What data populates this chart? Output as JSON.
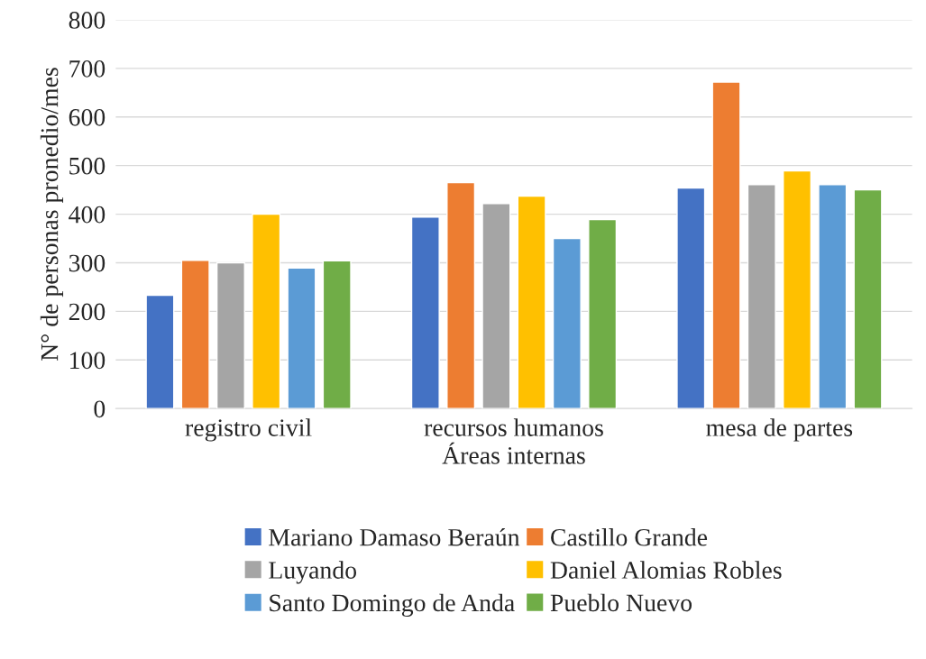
{
  "chart_data": {
    "type": "bar",
    "xlabel": "Áreas internas",
    "ylabel": "N° de personas pronedio/mes",
    "categories": [
      "registro civil",
      "recursos humanos",
      "mesa de partes"
    ],
    "series": [
      {
        "name": "Mariano Damaso Beraún",
        "color": "#4472c4",
        "values": [
          233,
          394,
          454
        ]
      },
      {
        "name": "Castillo Grande",
        "color": "#ed7d31",
        "values": [
          305,
          465,
          672
        ]
      },
      {
        "name": "Luyando",
        "color": "#a5a5a5",
        "values": [
          300,
          422,
          461
        ]
      },
      {
        "name": "Daniel Alomias Robles",
        "color": "#ffc000",
        "values": [
          400,
          437,
          489
        ]
      },
      {
        "name": "Santo Domingo de Anda",
        "color": "#5b9bd5",
        "values": [
          289,
          350,
          461
        ]
      },
      {
        "name": "Pueblo Nuevo",
        "color": "#70ad47",
        "values": [
          304,
          389,
          450
        ]
      }
    ],
    "ylim": [
      0,
      800
    ],
    "yticks": [
      0,
      100,
      200,
      300,
      400,
      500,
      600,
      700,
      800
    ],
    "grid": "y",
    "legend": "bottom"
  }
}
